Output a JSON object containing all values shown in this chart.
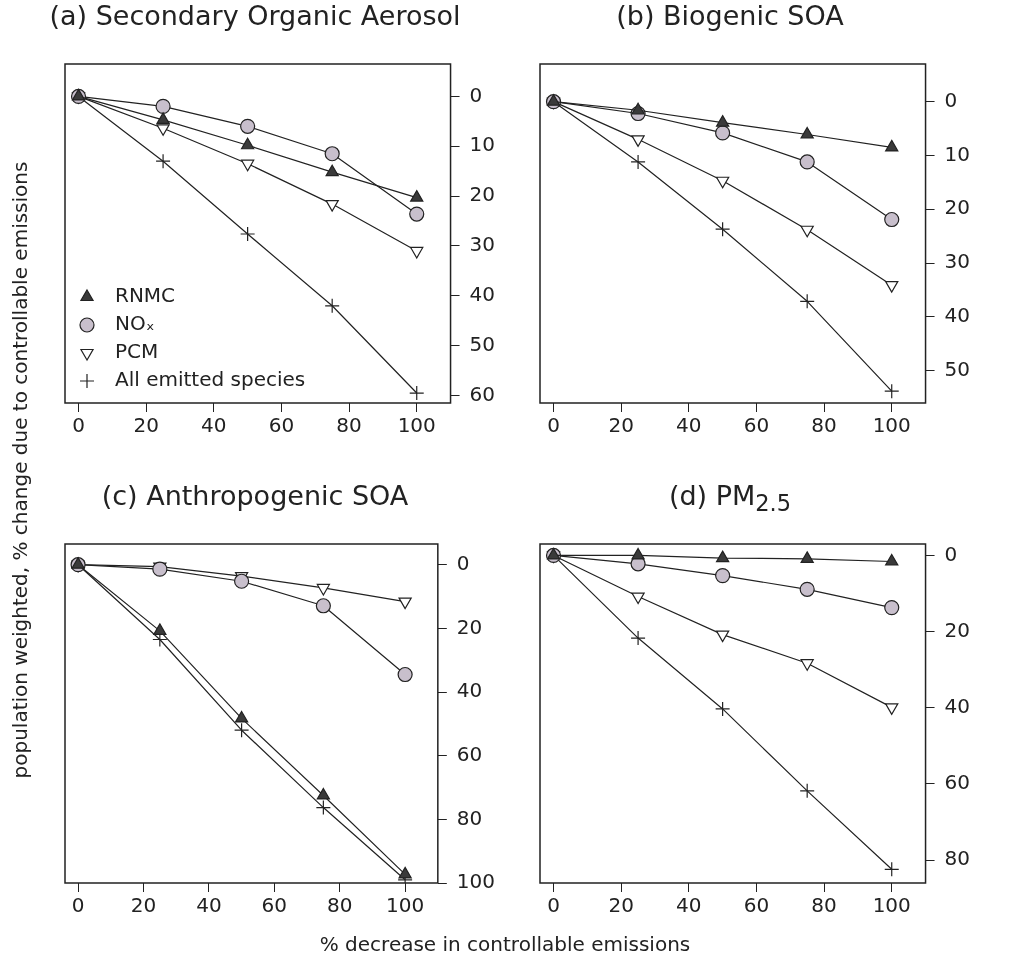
{
  "chart_data": [
    {
      "type": "line",
      "title": "(a) Secondary Organic Aerosol",
      "ylabel": "population weighted, % change due to controllable emissions",
      "x": [
        0,
        25,
        50,
        75,
        100
      ],
      "xlim": [
        -4,
        110
      ],
      "xticks": [
        0,
        20,
        40,
        60,
        80,
        100
      ],
      "ylim": [
        61.5,
        -6.5
      ],
      "yticks": [
        0,
        10,
        20,
        30,
        40,
        50,
        60
      ],
      "legend": "bottom left",
      "series": [
        {
          "name": "RNMC",
          "color": "#3a3a3a",
          "marker": "triangle",
          "values": [
            0,
            4.7,
            9.8,
            15.2,
            20.3
          ]
        },
        {
          "name": "NOₓ",
          "color": "#c8bfcc",
          "marker": "circle",
          "values": [
            0,
            2,
            6,
            11.5,
            23.6
          ]
        },
        {
          "name": "PCM",
          "color": "#ffffff",
          "marker": "triangle-down",
          "values": [
            0,
            6.4,
            13.5,
            21.6,
            31
          ]
        },
        {
          "name": "All emitted species",
          "color": "#222222",
          "marker": "cross",
          "values": [
            0,
            13,
            27.6,
            42,
            59.5
          ]
        }
      ]
    },
    {
      "type": "line",
      "title": "(b) Biogenic SOA",
      "x": [
        0,
        25,
        50,
        75,
        100
      ],
      "xlim": [
        -4,
        110
      ],
      "xticks": [
        0,
        20,
        40,
        60,
        80,
        100
      ],
      "ylim": [
        56,
        -7
      ],
      "yticks": [
        0,
        10,
        20,
        30,
        40,
        50
      ],
      "series": [
        {
          "color": "#3a3a3a",
          "marker": "triangle",
          "values": [
            0,
            1.6,
            3.9,
            6.1,
            8.5
          ]
        },
        {
          "color": "#c8bfcc",
          "marker": "circle",
          "values": [
            0,
            2.2,
            5.8,
            11.2,
            21.9
          ]
        },
        {
          "color": "#ffffff",
          "marker": "triangle-down",
          "values": [
            0,
            7,
            14.7,
            23.8,
            34.1
          ]
        },
        {
          "color": "#222222",
          "marker": "cross",
          "values": [
            0,
            11.2,
            23.7,
            37.1,
            53.8
          ]
        }
      ]
    },
    {
      "type": "line",
      "title": "(c) Anthropogenic SOA",
      "xlabel": "% decrease in controllable emissions",
      "x": [
        0,
        25,
        50,
        75,
        100
      ],
      "xlim": [
        -4,
        110
      ],
      "xticks": [
        0,
        20,
        40,
        60,
        80,
        100
      ],
      "ylim": [
        100,
        -6.5
      ],
      "yticks": [
        0,
        20,
        40,
        60,
        80,
        100
      ],
      "series": [
        {
          "color": "#3a3a3a",
          "marker": "triangle",
          "values": [
            0,
            20.8,
            48.3,
            72.5,
            97.3
          ]
        },
        {
          "color": "#c8bfcc",
          "marker": "circle",
          "values": [
            0,
            1.4,
            5.2,
            12.9,
            34.5
          ]
        },
        {
          "color": "#ffffff",
          "marker": "triangle-down",
          "values": [
            0,
            0.6,
            3.6,
            7.3,
            11.6
          ]
        },
        {
          "color": "#222222",
          "marker": "cross",
          "values": [
            0,
            23.5,
            52,
            76.3,
            99
          ]
        }
      ]
    },
    {
      "type": "line",
      "title": "(d) PM$_{2.5}$",
      "x": [
        0,
        25,
        50,
        75,
        100
      ],
      "xlim": [
        -4,
        110
      ],
      "xticks": [
        0,
        20,
        40,
        60,
        80,
        100
      ],
      "ylim": [
        86,
        -3
      ],
      "yticks": [
        0,
        20,
        40,
        60,
        80
      ],
      "series": [
        {
          "color": "#3a3a3a",
          "marker": "triangle",
          "values": [
            0,
            0,
            0.7,
            0.9,
            1.6
          ]
        },
        {
          "color": "#c8bfcc",
          "marker": "circle",
          "values": [
            0,
            2.2,
            5.3,
            8.9,
            13.7
          ]
        },
        {
          "color": "#ffffff",
          "marker": "triangle-down",
          "values": [
            0,
            10.8,
            20.8,
            28.3,
            39.9
          ]
        },
        {
          "color": "#222222",
          "marker": "cross",
          "values": [
            0,
            21.7,
            40.3,
            61.8,
            82.4
          ]
        }
      ]
    }
  ]
}
